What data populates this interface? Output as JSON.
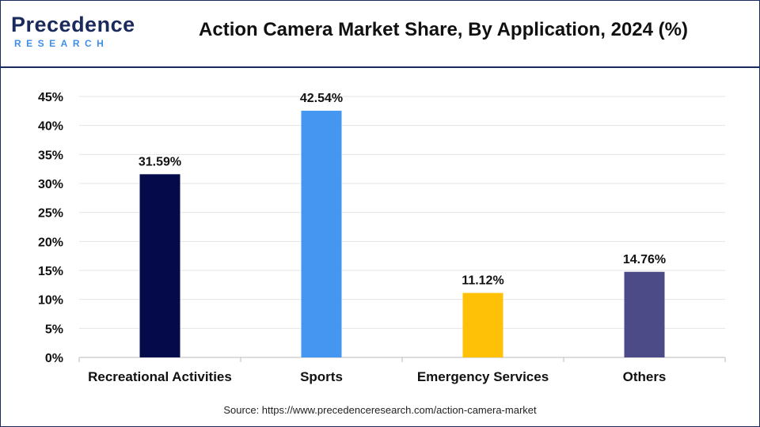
{
  "header": {
    "title": "Action Camera Market Share, By Application, 2024 (%)",
    "logo_top": "Precedence",
    "logo_bottom": "RESEARCH"
  },
  "footer": {
    "source": "Source: https://www.precedenceresearch.com/action-camera-market"
  },
  "colors": {
    "frame": "#1b2a5c",
    "grid": "#e4e4e4",
    "axis": "#bbbbbb"
  },
  "chart_data": {
    "type": "bar",
    "title": "Action Camera Market Share, By Application, 2024 (%)",
    "categories": [
      "Recreational Activities",
      "Sports",
      "Emergency Services",
      "Others"
    ],
    "values": [
      31.59,
      42.54,
      11.12,
      14.76
    ],
    "data_labels": [
      "31.59%",
      "42.54%",
      "11.12%",
      "14.76%"
    ],
    "bar_colors": [
      "#050a4a",
      "#4596f0",
      "#ffc107",
      "#4c4b88"
    ],
    "ylim": [
      0,
      45
    ],
    "yticks": [
      0,
      5,
      10,
      15,
      20,
      25,
      30,
      35,
      40,
      45
    ],
    "ytick_labels": [
      "0%",
      "5%",
      "10%",
      "15%",
      "20%",
      "25%",
      "30%",
      "35%",
      "40%",
      "45%"
    ],
    "xlabel": "",
    "ylabel": "",
    "grid": true,
    "legend": "none"
  }
}
